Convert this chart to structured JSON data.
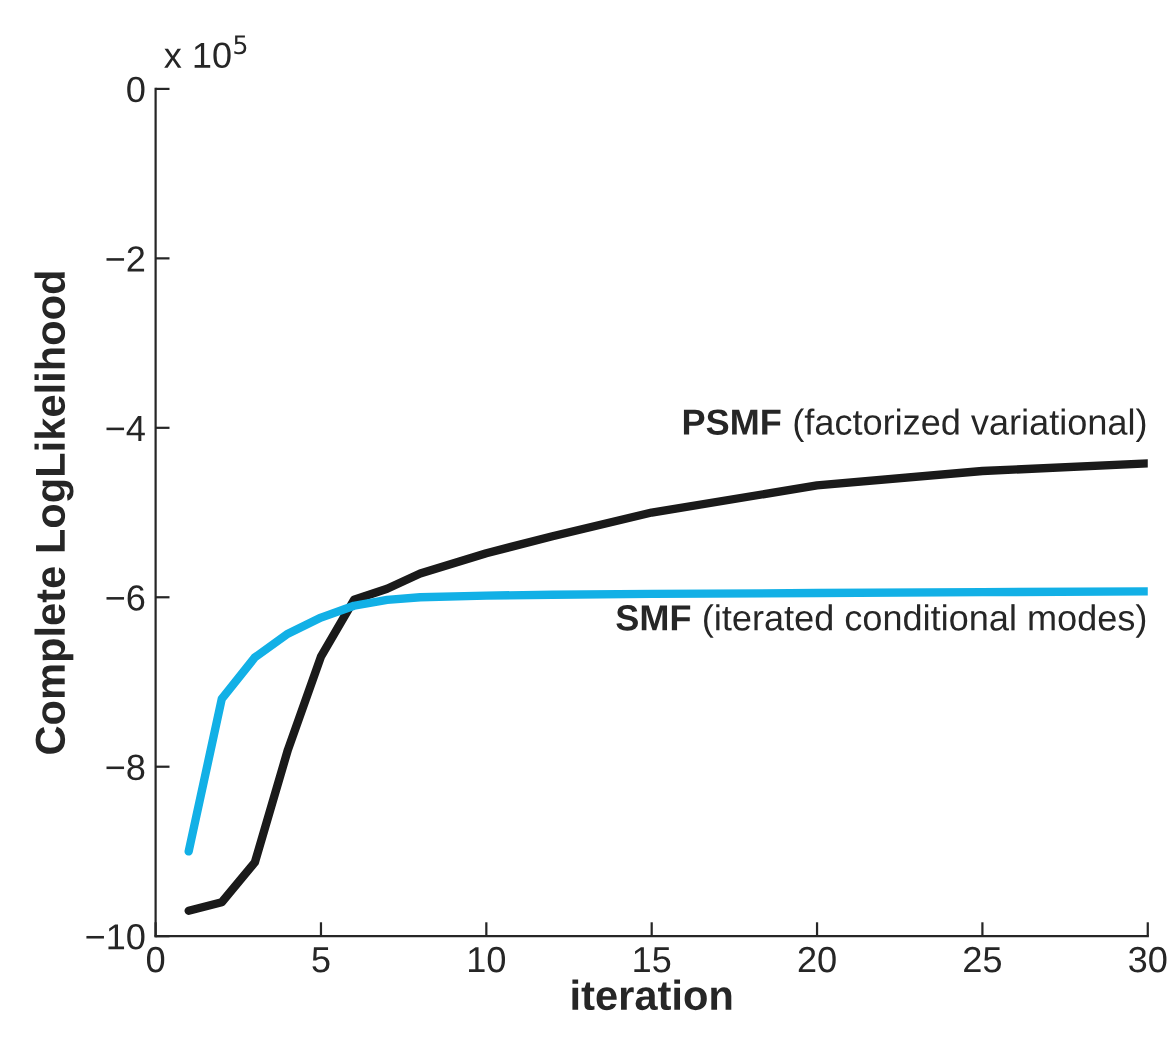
{
  "chart_data": {
    "type": "line",
    "xlabel": "iteration",
    "ylabel": "Complete LogLikelihood",
    "x": [
      1,
      2,
      3,
      4,
      5,
      6,
      7,
      8,
      10,
      12,
      15,
      20,
      25,
      30
    ],
    "series": [
      {
        "name": "PSMF (factorized variational)",
        "color": "#1a1a1a",
        "values": [
          -9.7,
          -9.6,
          -9.13,
          -7.8,
          -6.7,
          -6.03,
          -5.9,
          -5.72,
          -5.48,
          -5.28,
          -5.0,
          -4.68,
          -4.51,
          -4.42
        ]
      },
      {
        "name": "SMF (iterated conditional modes)",
        "color": "#12b0e6",
        "values": [
          -9.0,
          -7.2,
          -6.71,
          -6.43,
          -6.24,
          -6.1,
          -6.03,
          -6.0,
          -5.98,
          -5.97,
          -5.96,
          -5.95,
          -5.94,
          -5.93
        ]
      }
    ],
    "xlim": [
      0,
      30
    ],
    "xticks": [
      0,
      5,
      10,
      15,
      20,
      25,
      30
    ],
    "ylim": [
      -10,
      0
    ],
    "yticks": [
      {
        "value": -10,
        "label": "−10"
      },
      {
        "value": -8,
        "label": "−8"
      },
      {
        "value": -6,
        "label": "−6"
      },
      {
        "value": -4,
        "label": "−4"
      },
      {
        "value": -2,
        "label": "−2"
      },
      0
    ],
    "annotations": [
      "x 10$^{5}$"
    ],
    "grid": false,
    "legend": false,
    "marker": "none",
    "line_style": "solid"
  }
}
